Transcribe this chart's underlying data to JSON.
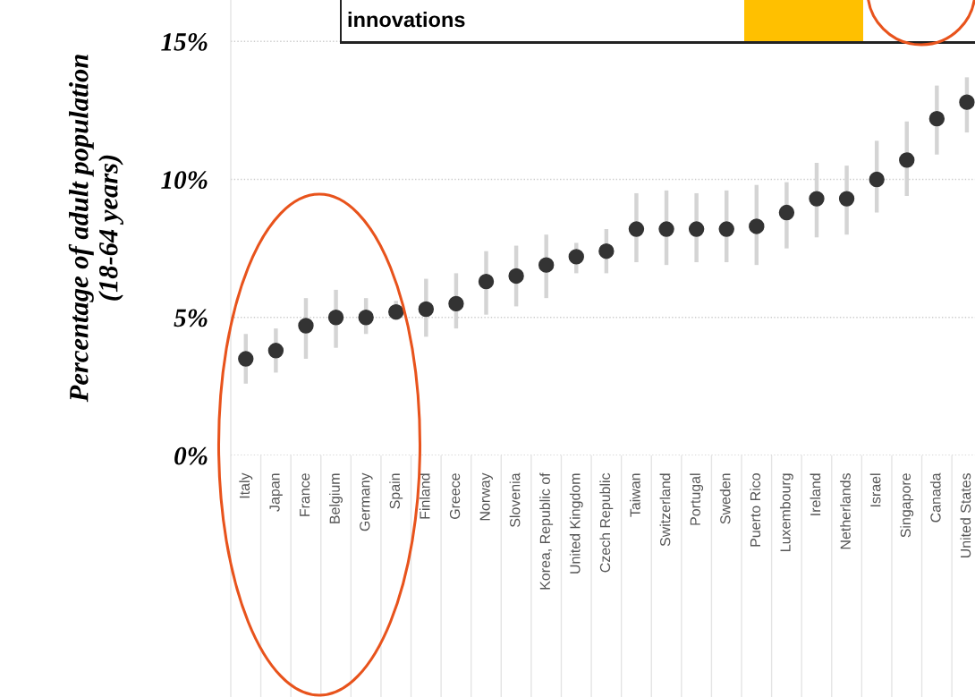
{
  "chart_data": {
    "type": "scatter",
    "ylabel": "Percentage of adult population\n(18-64 years)",
    "annotations": [
      "innovations"
    ],
    "categories": [
      "Italy",
      "Japan",
      "France",
      "Belgium",
      "Germany",
      "Spain",
      "Finland",
      "Greece",
      "Norway",
      "Slovenia",
      "Korea, Republic of",
      "United Kingdom",
      "Czech Republic",
      "Taiwan",
      "Switzerland",
      "Portugal",
      "Sweden",
      "Puerto Rico",
      "Luxembourg",
      "Ireland",
      "Netherlands",
      "Israel",
      "Singapore",
      "Canada",
      "United States"
    ],
    "series": [
      {
        "color": "#333333",
        "values": [
          3.5,
          3.8,
          4.7,
          5.0,
          5.0,
          5.2,
          5.3,
          5.5,
          6.3,
          6.5,
          6.9,
          7.2,
          7.4,
          8.2,
          8.2,
          8.2,
          8.2,
          8.3,
          8.8,
          9.3,
          9.3,
          10.0,
          10.7,
          12.2,
          12.8
        ],
        "errors": [
          [
            2.6,
            4.4
          ],
          [
            3.0,
            4.6
          ],
          [
            3.5,
            5.7
          ],
          [
            3.9,
            6.0
          ],
          [
            4.4,
            5.7
          ],
          [
            4.9,
            5.6
          ],
          [
            4.3,
            6.4
          ],
          [
            4.6,
            6.6
          ],
          [
            5.1,
            7.4
          ],
          [
            5.4,
            7.6
          ],
          [
            5.7,
            8.0
          ],
          [
            6.6,
            7.7
          ],
          [
            6.6,
            8.2
          ],
          [
            7.0,
            9.5
          ],
          [
            6.9,
            9.6
          ],
          [
            7.0,
            9.5
          ],
          [
            7.0,
            9.6
          ],
          [
            6.9,
            9.8
          ],
          [
            7.5,
            9.9
          ],
          [
            7.9,
            10.6
          ],
          [
            8.0,
            10.5
          ],
          [
            8.8,
            11.4
          ],
          [
            9.4,
            12.1
          ],
          [
            10.9,
            13.4
          ],
          [
            11.7,
            13.7
          ]
        ]
      }
    ],
    "ylim": [
      0,
      16.5
    ],
    "yticks": [
      {
        "value": 0,
        "label": "0%"
      },
      {
        "value": 5,
        "label": "5%"
      },
      {
        "value": 10,
        "label": "10%"
      },
      {
        "value": 15,
        "label": "15%"
      }
    ],
    "grid": "y",
    "marker": "circle"
  }
}
